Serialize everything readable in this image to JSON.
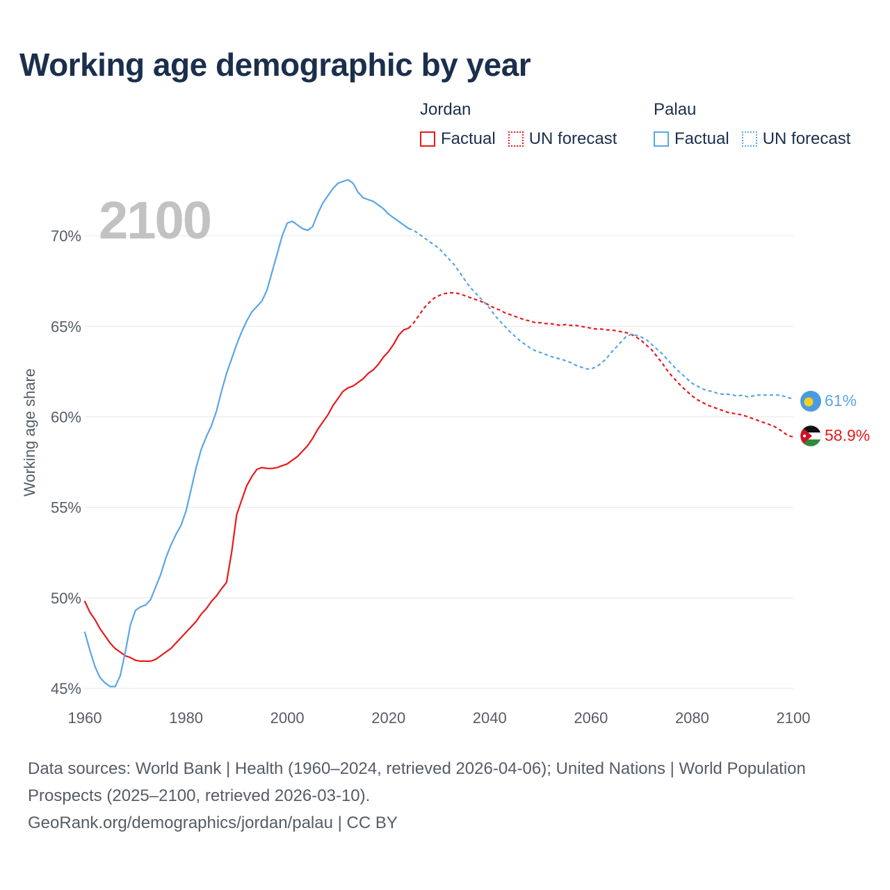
{
  "title": "Working age demographic by year",
  "legend": {
    "groups": [
      {
        "name": "Jordan",
        "color": "#e8191a",
        "items": [
          {
            "label": "Factual",
            "style": "solid"
          },
          {
            "label": "UN forecast",
            "style": "dotted"
          }
        ]
      },
      {
        "name": "Palau",
        "color": "#5aa5e6",
        "items": [
          {
            "label": "Factual",
            "style": "solid"
          },
          {
            "label": "UN forecast",
            "style": "dotted"
          }
        ]
      }
    ]
  },
  "footer": {
    "sources": "Data sources: World Bank | Health (1960–2024, retrieved 2026-04-06); United Nations | World Population Prospects (2025–2100, retrieved 2026-03-10).",
    "credit": "GeoRank.org/demographics/jordan/palau | CC BY"
  },
  "chart_data": {
    "type": "line",
    "title": "Working age demographic by year",
    "year_watermark": "2100",
    "xlabel": "",
    "ylabel": "Working age share",
    "xlim": [
      1960,
      2100
    ],
    "ylim": [
      44.5,
      73.5
    ],
    "x_ticks": [
      1960,
      1980,
      2000,
      2020,
      2040,
      2060,
      2080,
      2100
    ],
    "x_tick_labels": [
      "1960",
      "1980",
      "2000",
      "2020",
      "2040",
      "2060",
      "2080",
      "2100"
    ],
    "y_ticks": [
      45,
      50,
      55,
      60,
      65,
      70
    ],
    "y_tick_labels": [
      "45%",
      "50%",
      "55%",
      "60%",
      "65%",
      "70%"
    ],
    "grid": true,
    "forecast_start": 2024,
    "series": [
      {
        "name": "Jordan",
        "color": "#e8191a",
        "end_label": "58.9%",
        "end_marker": "jordan-flag",
        "points": [
          [
            1960,
            49.8
          ],
          [
            1961,
            49.2
          ],
          [
            1962,
            48.8
          ],
          [
            1963,
            48.3
          ],
          [
            1964,
            47.9
          ],
          [
            1965,
            47.5
          ],
          [
            1966,
            47.2
          ],
          [
            1967,
            47.0
          ],
          [
            1968,
            46.8
          ],
          [
            1969,
            46.7
          ],
          [
            1970,
            46.55
          ],
          [
            1971,
            46.5
          ],
          [
            1972,
            46.5
          ],
          [
            1973,
            46.5
          ],
          [
            1974,
            46.6
          ],
          [
            1975,
            46.8
          ],
          [
            1976,
            47.0
          ],
          [
            1977,
            47.2
          ],
          [
            1978,
            47.5
          ],
          [
            1979,
            47.8
          ],
          [
            1980,
            48.1
          ],
          [
            1981,
            48.4
          ],
          [
            1982,
            48.7
          ],
          [
            1983,
            49.1
          ],
          [
            1984,
            49.4
          ],
          [
            1985,
            49.8
          ],
          [
            1986,
            50.1
          ],
          [
            1987,
            50.5
          ],
          [
            1988,
            50.85
          ],
          [
            1989,
            52.5
          ],
          [
            1990,
            54.6
          ],
          [
            1991,
            55.4
          ],
          [
            1992,
            56.2
          ],
          [
            1993,
            56.7
          ],
          [
            1994,
            57.1
          ],
          [
            1995,
            57.2
          ],
          [
            1996,
            57.15
          ],
          [
            1997,
            57.15
          ],
          [
            1998,
            57.2
          ],
          [
            1999,
            57.3
          ],
          [
            2000,
            57.4
          ],
          [
            2001,
            57.6
          ],
          [
            2002,
            57.8
          ],
          [
            2003,
            58.1
          ],
          [
            2004,
            58.4
          ],
          [
            2005,
            58.8
          ],
          [
            2006,
            59.3
          ],
          [
            2007,
            59.7
          ],
          [
            2008,
            60.1
          ],
          [
            2009,
            60.6
          ],
          [
            2010,
            61.0
          ],
          [
            2011,
            61.4
          ],
          [
            2012,
            61.6
          ],
          [
            2013,
            61.7
          ],
          [
            2014,
            61.9
          ],
          [
            2015,
            62.1
          ],
          [
            2016,
            62.4
          ],
          [
            2017,
            62.6
          ],
          [
            2018,
            62.9
          ],
          [
            2019,
            63.3
          ],
          [
            2020,
            63.6
          ],
          [
            2021,
            64.0
          ],
          [
            2022,
            64.5
          ],
          [
            2023,
            64.8
          ],
          [
            2024,
            64.9
          ],
          [
            2025,
            65.2
          ],
          [
            2026,
            65.6
          ],
          [
            2027,
            66.0
          ],
          [
            2028,
            66.3
          ],
          [
            2029,
            66.55
          ],
          [
            2030,
            66.7
          ],
          [
            2031,
            66.8
          ],
          [
            2032,
            66.85
          ],
          [
            2033,
            66.85
          ],
          [
            2034,
            66.8
          ],
          [
            2035,
            66.7
          ],
          [
            2036,
            66.6
          ],
          [
            2037,
            66.5
          ],
          [
            2038,
            66.4
          ],
          [
            2039,
            66.3
          ],
          [
            2040,
            66.15
          ],
          [
            2041,
            66.0
          ],
          [
            2042,
            65.9
          ],
          [
            2043,
            65.75
          ],
          [
            2044,
            65.65
          ],
          [
            2045,
            65.55
          ],
          [
            2046,
            65.45
          ],
          [
            2047,
            65.35
          ],
          [
            2048,
            65.3
          ],
          [
            2049,
            65.2
          ],
          [
            2050,
            65.2
          ],
          [
            2051,
            65.15
          ],
          [
            2052,
            65.15
          ],
          [
            2053,
            65.1
          ],
          [
            2054,
            65.05
          ],
          [
            2055,
            65.1
          ],
          [
            2056,
            65.05
          ],
          [
            2057,
            65.05
          ],
          [
            2058,
            65.0
          ],
          [
            2059,
            64.95
          ],
          [
            2060,
            64.9
          ],
          [
            2061,
            64.85
          ],
          [
            2062,
            64.85
          ],
          [
            2063,
            64.8
          ],
          [
            2064,
            64.8
          ],
          [
            2065,
            64.75
          ],
          [
            2066,
            64.7
          ],
          [
            2067,
            64.65
          ],
          [
            2068,
            64.55
          ],
          [
            2069,
            64.4
          ],
          [
            2070,
            64.2
          ],
          [
            2071,
            63.95
          ],
          [
            2072,
            63.7
          ],
          [
            2073,
            63.35
          ],
          [
            2074,
            63.0
          ],
          [
            2075,
            62.6
          ],
          [
            2076,
            62.25
          ],
          [
            2077,
            61.95
          ],
          [
            2078,
            61.65
          ],
          [
            2079,
            61.4
          ],
          [
            2080,
            61.15
          ],
          [
            2081,
            60.95
          ],
          [
            2082,
            60.8
          ],
          [
            2083,
            60.65
          ],
          [
            2084,
            60.55
          ],
          [
            2085,
            60.45
          ],
          [
            2086,
            60.35
          ],
          [
            2087,
            60.25
          ],
          [
            2088,
            60.2
          ],
          [
            2089,
            60.15
          ],
          [
            2090,
            60.1
          ],
          [
            2091,
            60.0
          ],
          [
            2092,
            59.9
          ],
          [
            2093,
            59.8
          ],
          [
            2094,
            59.7
          ],
          [
            2095,
            59.6
          ],
          [
            2096,
            59.5
          ],
          [
            2097,
            59.35
          ],
          [
            2098,
            59.15
          ],
          [
            2099,
            58.95
          ],
          [
            2100,
            58.9
          ]
        ]
      },
      {
        "name": "Palau",
        "color": "#5aa5e6",
        "end_label": "61%",
        "end_marker": "palau-flag",
        "points": [
          [
            1960,
            48.1
          ],
          [
            1961,
            47.1
          ],
          [
            1962,
            46.2
          ],
          [
            1963,
            45.6
          ],
          [
            1964,
            45.3
          ],
          [
            1965,
            45.1
          ],
          [
            1966,
            45.1
          ],
          [
            1967,
            45.7
          ],
          [
            1968,
            47.0
          ],
          [
            1969,
            48.5
          ],
          [
            1970,
            49.3
          ],
          [
            1971,
            49.5
          ],
          [
            1972,
            49.6
          ],
          [
            1973,
            49.9
          ],
          [
            1974,
            50.6
          ],
          [
            1975,
            51.3
          ],
          [
            1976,
            52.2
          ],
          [
            1977,
            52.9
          ],
          [
            1978,
            53.5
          ],
          [
            1979,
            54.0
          ],
          [
            1980,
            54.8
          ],
          [
            1981,
            56.0
          ],
          [
            1982,
            57.2
          ],
          [
            1983,
            58.2
          ],
          [
            1984,
            58.9
          ],
          [
            1985,
            59.5
          ],
          [
            1986,
            60.3
          ],
          [
            1987,
            61.4
          ],
          [
            1988,
            62.4
          ],
          [
            1989,
            63.2
          ],
          [
            1990,
            64.0
          ],
          [
            1991,
            64.7
          ],
          [
            1992,
            65.3
          ],
          [
            1993,
            65.8
          ],
          [
            1994,
            66.1
          ],
          [
            1995,
            66.4
          ],
          [
            1996,
            67.0
          ],
          [
            1997,
            68.0
          ],
          [
            1998,
            69.0
          ],
          [
            1999,
            70.0
          ],
          [
            2000,
            70.7
          ],
          [
            2001,
            70.8
          ],
          [
            2002,
            70.6
          ],
          [
            2003,
            70.4
          ],
          [
            2004,
            70.3
          ],
          [
            2005,
            70.5
          ],
          [
            2006,
            71.2
          ],
          [
            2007,
            71.8
          ],
          [
            2008,
            72.2
          ],
          [
            2009,
            72.6
          ],
          [
            2010,
            72.9
          ],
          [
            2011,
            73.0
          ],
          [
            2012,
            73.1
          ],
          [
            2013,
            72.9
          ],
          [
            2014,
            72.4
          ],
          [
            2015,
            72.1
          ],
          [
            2016,
            72.0
          ],
          [
            2017,
            71.9
          ],
          [
            2018,
            71.7
          ],
          [
            2019,
            71.5
          ],
          [
            2020,
            71.2
          ],
          [
            2021,
            71.0
          ],
          [
            2022,
            70.8
          ],
          [
            2023,
            70.6
          ],
          [
            2024,
            70.4
          ],
          [
            2025,
            70.3
          ],
          [
            2026,
            70.1
          ],
          [
            2027,
            69.9
          ],
          [
            2028,
            69.7
          ],
          [
            2029,
            69.5
          ],
          [
            2030,
            69.3
          ],
          [
            2031,
            69.0
          ],
          [
            2032,
            68.7
          ],
          [
            2033,
            68.4
          ],
          [
            2034,
            68.0
          ],
          [
            2035,
            67.6
          ],
          [
            2036,
            67.2
          ],
          [
            2037,
            66.9
          ],
          [
            2038,
            66.6
          ],
          [
            2039,
            66.3
          ],
          [
            2040,
            66.0
          ],
          [
            2041,
            65.6
          ],
          [
            2042,
            65.3
          ],
          [
            2043,
            65.0
          ],
          [
            2044,
            64.7
          ],
          [
            2045,
            64.45
          ],
          [
            2046,
            64.2
          ],
          [
            2047,
            64.0
          ],
          [
            2048,
            63.8
          ],
          [
            2049,
            63.65
          ],
          [
            2050,
            63.55
          ],
          [
            2051,
            63.45
          ],
          [
            2052,
            63.35
          ],
          [
            2053,
            63.25
          ],
          [
            2054,
            63.2
          ],
          [
            2055,
            63.1
          ],
          [
            2056,
            63.0
          ],
          [
            2057,
            62.85
          ],
          [
            2058,
            62.75
          ],
          [
            2059,
            62.65
          ],
          [
            2060,
            62.65
          ],
          [
            2061,
            62.75
          ],
          [
            2062,
            62.95
          ],
          [
            2063,
            63.2
          ],
          [
            2064,
            63.55
          ],
          [
            2065,
            63.85
          ],
          [
            2066,
            64.15
          ],
          [
            2067,
            64.45
          ],
          [
            2068,
            64.55
          ],
          [
            2069,
            64.5
          ],
          [
            2070,
            64.4
          ],
          [
            2071,
            64.25
          ],
          [
            2072,
            64.0
          ],
          [
            2073,
            63.75
          ],
          [
            2074,
            63.5
          ],
          [
            2075,
            63.2
          ],
          [
            2076,
            62.9
          ],
          [
            2077,
            62.6
          ],
          [
            2078,
            62.35
          ],
          [
            2079,
            62.1
          ],
          [
            2080,
            61.85
          ],
          [
            2081,
            61.7
          ],
          [
            2082,
            61.55
          ],
          [
            2083,
            61.45
          ],
          [
            2084,
            61.4
          ],
          [
            2085,
            61.3
          ],
          [
            2086,
            61.25
          ],
          [
            2087,
            61.25
          ],
          [
            2088,
            61.2
          ],
          [
            2089,
            61.15
          ],
          [
            2090,
            61.2
          ],
          [
            2091,
            61.1
          ],
          [
            2092,
            61.15
          ],
          [
            2093,
            61.2
          ],
          [
            2094,
            61.2
          ],
          [
            2095,
            61.2
          ],
          [
            2096,
            61.2
          ],
          [
            2097,
            61.2
          ],
          [
            2098,
            61.15
          ],
          [
            2099,
            61.05
          ],
          [
            2100,
            61.0
          ]
        ]
      }
    ]
  }
}
